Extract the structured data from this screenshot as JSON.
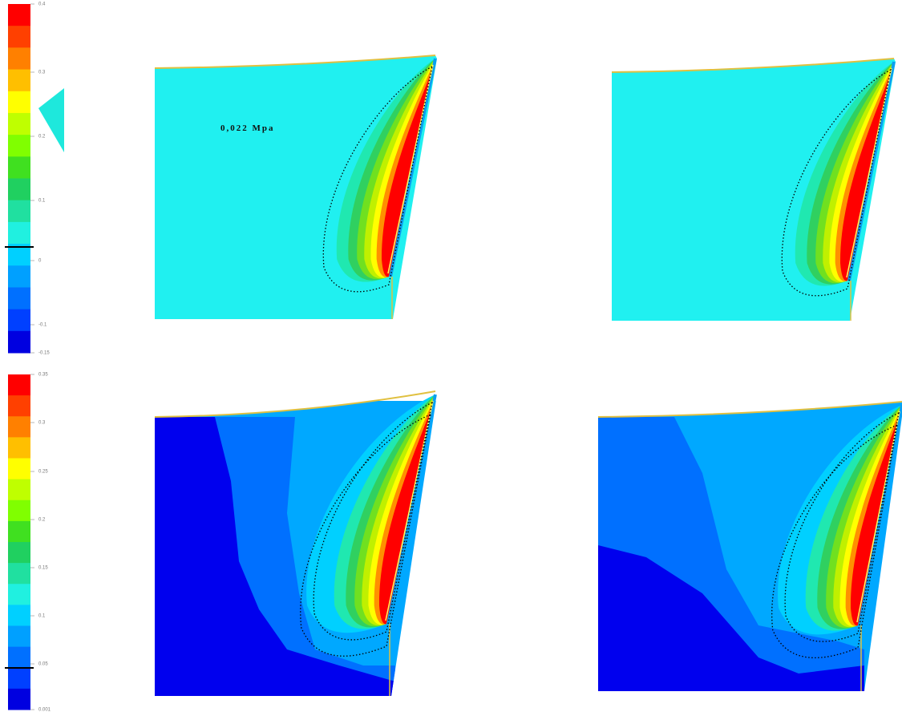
{
  "colorbars": [
    {
      "labels": [
        "0.4",
        "0.3",
        "0.2",
        "0.1",
        "0",
        "-0.1",
        "-0.15"
      ]
    },
    {
      "labels": [
        "0.35",
        "0.3",
        "0.25",
        "0.2",
        "0.15",
        "0.1",
        "0.05",
        "0.001"
      ]
    }
  ],
  "annotation": "0,022 Mpa"
}
